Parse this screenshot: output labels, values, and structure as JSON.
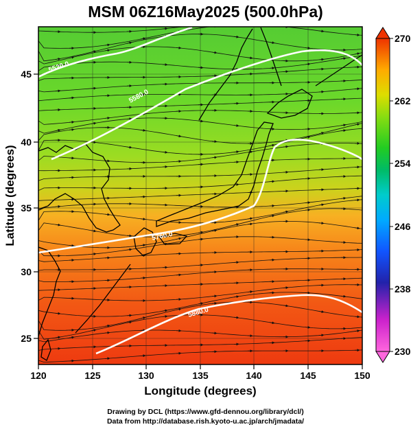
{
  "title": "MSM 06Z16May2025 (500.0hPa)",
  "axes": {
    "xlabel": "Longitude (degrees)",
    "ylabel": "Latitude  (degrees)",
    "xlim": [
      120,
      150
    ],
    "ylim": [
      22.5,
      47.6
    ],
    "xticks": [
      "120",
      "125",
      "130",
      "135",
      "140",
      "145",
      "150"
    ],
    "yticks": [
      "25",
      "30",
      "35",
      "40",
      "45"
    ]
  },
  "colorbar": {
    "min": 230,
    "max": 270,
    "labels": [
      "270",
      "262",
      "254",
      "246",
      "238",
      "230"
    ],
    "colors": [
      "#e8e8f8",
      "#ff55cc",
      "#cc22cc",
      "#2222aa",
      "#1144ff",
      "#00aaff",
      "#00cccc",
      "#00bb77",
      "#11cc22",
      "#55dd11",
      "#aadd11",
      "#dddd00",
      "#ffaa00",
      "#ff6600",
      "#ee2200"
    ]
  },
  "contours": [
    {
      "label": "5520.0"
    },
    {
      "label": "5580.0"
    },
    {
      "label": "5760.0"
    },
    {
      "label": "5880.0"
    }
  ],
  "credits": {
    "line1": "Drawing by DCL (https://www.gfd-dennou.org/library/dcl/)",
    "line2": "Data from http://database.rish.kyoto-u.ac.jp/arch/jmadata/"
  }
}
